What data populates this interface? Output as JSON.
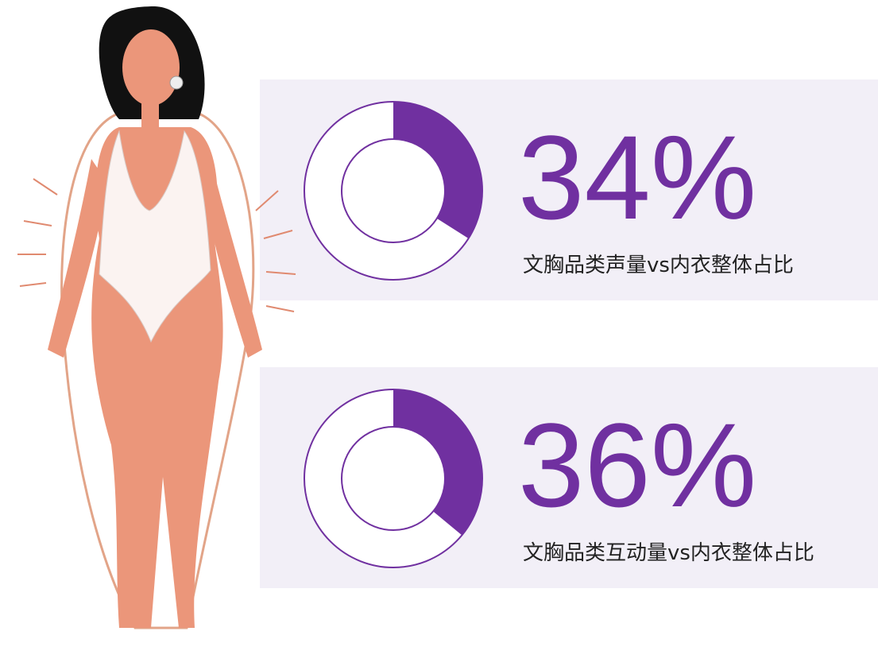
{
  "chart_data": [
    {
      "type": "donut",
      "title": "文胸品类声量vs内衣整体占比",
      "values": [
        34
      ],
      "value_labels": [
        "34%"
      ],
      "color": "#7030a0"
    },
    {
      "type": "donut",
      "title": "文胸品类互动量vs内衣整体占比",
      "values": [
        36
      ],
      "value_labels": [
        "36%"
      ],
      "color": "#7030a0"
    }
  ]
}
